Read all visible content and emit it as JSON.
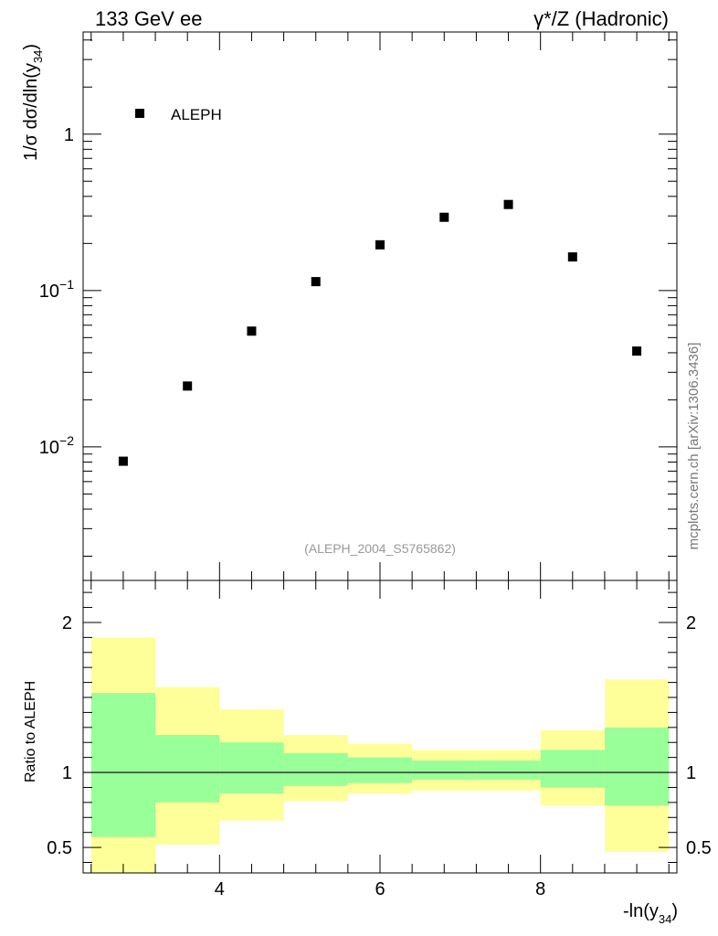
{
  "header": {
    "left": "133 GeV ee",
    "right": "γ*/Z (Hadronic)"
  },
  "watermark": "mcplots.cern.ch [arXiv:1306.3436]",
  "analysis_id": "(ALEPH_2004_S5765862)",
  "colors": {
    "data_marker": "#000000",
    "band_inner": "#99ff99",
    "band_outer": "#ffff99",
    "frame": "#000000",
    "analysis_id_text": "#999999",
    "watermark_text": "#777777"
  },
  "chart_data": [
    {
      "type": "scatter",
      "panel": "main",
      "title": "",
      "xlabel": "",
      "ylabel": "1/σ dσ/dln(y34)",
      "ylabel_parts": {
        "prefix": "1/σ  dσ/dln(y",
        "sub": "34",
        "suffix": ")"
      },
      "yscale": "log",
      "xlim": [
        2.3,
        9.7
      ],
      "ylim": [
        0.0014,
        4.5
      ],
      "yticks": [
        {
          "value": 0.01,
          "base": "10",
          "exp": "−2"
        },
        {
          "value": 0.1,
          "base": "10",
          "exp": "−1"
        },
        {
          "value": 1,
          "label": "1"
        }
      ],
      "legend": {
        "position": "top-left",
        "entries": [
          "ALEPH"
        ]
      },
      "series": [
        {
          "name": "ALEPH",
          "x": [
            2.8,
            3.6,
            4.4,
            5.2,
            6.0,
            6.8,
            7.6,
            8.4,
            9.2
          ],
          "y": [
            0.0081,
            0.0245,
            0.055,
            0.114,
            0.196,
            0.294,
            0.355,
            0.164,
            0.041
          ]
        }
      ]
    },
    {
      "type": "area",
      "panel": "ratio",
      "ylabel": "Ratio to ALEPH",
      "xlabel": "-ln(y34)",
      "xlabel_parts": {
        "prefix": "-ln(y",
        "sub": "34",
        "suffix": ")"
      },
      "xlim": [
        2.3,
        9.7
      ],
      "ylim": [
        0.33,
        2.28
      ],
      "xticks": [
        4,
        6,
        8
      ],
      "yticks": [
        0.5,
        1,
        2
      ],
      "reference_line": 1,
      "bins": [
        {
          "x_lo": 2.4,
          "x_hi": 3.2,
          "inner": [
            0.57,
            1.53
          ],
          "outer": [
            0.2,
            1.9
          ]
        },
        {
          "x_lo": 3.2,
          "x_hi": 4.0,
          "inner": [
            0.8,
            1.25
          ],
          "outer": [
            0.52,
            1.57
          ]
        },
        {
          "x_lo": 4.0,
          "x_hi": 4.8,
          "inner": [
            0.86,
            1.2
          ],
          "outer": [
            0.68,
            1.42
          ]
        },
        {
          "x_lo": 4.8,
          "x_hi": 5.6,
          "inner": [
            0.91,
            1.13
          ],
          "outer": [
            0.81,
            1.25
          ]
        },
        {
          "x_lo": 5.6,
          "x_hi": 6.4,
          "inner": [
            0.93,
            1.1
          ],
          "outer": [
            0.86,
            1.19
          ]
        },
        {
          "x_lo": 6.4,
          "x_hi": 7.2,
          "inner": [
            0.95,
            1.08
          ],
          "outer": [
            0.88,
            1.15
          ]
        },
        {
          "x_lo": 7.2,
          "x_hi": 8.0,
          "inner": [
            0.95,
            1.08
          ],
          "outer": [
            0.88,
            1.15
          ]
        },
        {
          "x_lo": 8.0,
          "x_hi": 8.8,
          "inner": [
            0.9,
            1.15
          ],
          "outer": [
            0.78,
            1.28
          ]
        },
        {
          "x_lo": 8.8,
          "x_hi": 9.6,
          "inner": [
            0.78,
            1.3
          ],
          "outer": [
            0.47,
            1.62
          ]
        }
      ]
    }
  ]
}
